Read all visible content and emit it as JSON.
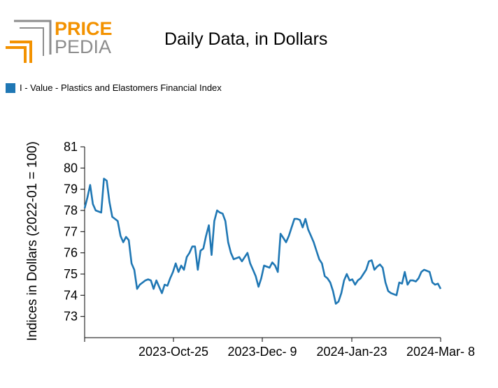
{
  "logo": {
    "line1": "PRICE",
    "line2": "PEDIA"
  },
  "chart_data": {
    "type": "line",
    "title": "Daily Data, in Dollars",
    "ylabel": "Indices in Dollars (2022-01 = 100)",
    "xlabel": "",
    "ylim": [
      72,
      81
    ],
    "yticks": [
      73,
      74,
      75,
      76,
      77,
      78,
      79,
      80,
      81
    ],
    "xtick_labels": [
      "2023-Oct-25",
      "2023-Dec- 9",
      "2024-Jan-23",
      "2024-Mar- 8"
    ],
    "legend_position": "top-left",
    "color": "#1f77b4",
    "series": [
      {
        "name": "I - Value - Plastics and Elastomers Financial Index",
        "values": [
          78.1,
          78.6,
          79.2,
          78.3,
          78.0,
          77.95,
          77.9,
          79.5,
          79.4,
          78.4,
          77.7,
          77.6,
          77.5,
          76.8,
          76.5,
          76.75,
          76.6,
          75.5,
          75.2,
          74.3,
          74.5,
          74.6,
          74.7,
          74.75,
          74.7,
          74.3,
          74.7,
          74.4,
          74.1,
          74.5,
          74.45,
          74.8,
          75.1,
          75.5,
          75.1,
          75.4,
          75.2,
          75.8,
          76.0,
          76.3,
          76.3,
          75.2,
          76.1,
          76.2,
          76.8,
          77.3,
          75.9,
          77.5,
          78.0,
          77.9,
          77.85,
          77.5,
          76.5,
          76.0,
          75.7,
          75.75,
          75.8,
          75.6,
          75.8,
          76.0,
          75.5,
          75.2,
          74.9,
          74.4,
          74.8,
          75.4,
          75.35,
          75.3,
          75.55,
          75.4,
          75.1,
          76.9,
          76.7,
          76.5,
          76.8,
          77.2,
          77.6,
          77.6,
          77.55,
          77.2,
          77.6,
          77.1,
          76.8,
          76.5,
          76.1,
          75.7,
          75.5,
          74.9,
          74.8,
          74.6,
          74.2,
          73.6,
          73.7,
          74.1,
          74.7,
          75.0,
          74.7,
          74.75,
          74.5,
          74.7,
          74.8,
          75.0,
          75.2,
          75.6,
          75.65,
          75.2,
          75.35,
          75.45,
          75.3,
          74.6,
          74.2,
          74.1,
          74.05,
          74.0,
          74.6,
          74.55,
          75.1,
          74.5,
          74.7,
          74.7,
          74.65,
          74.8,
          75.1,
          75.2,
          75.15,
          75.1,
          74.6,
          74.5,
          74.55,
          74.3
        ]
      }
    ]
  }
}
